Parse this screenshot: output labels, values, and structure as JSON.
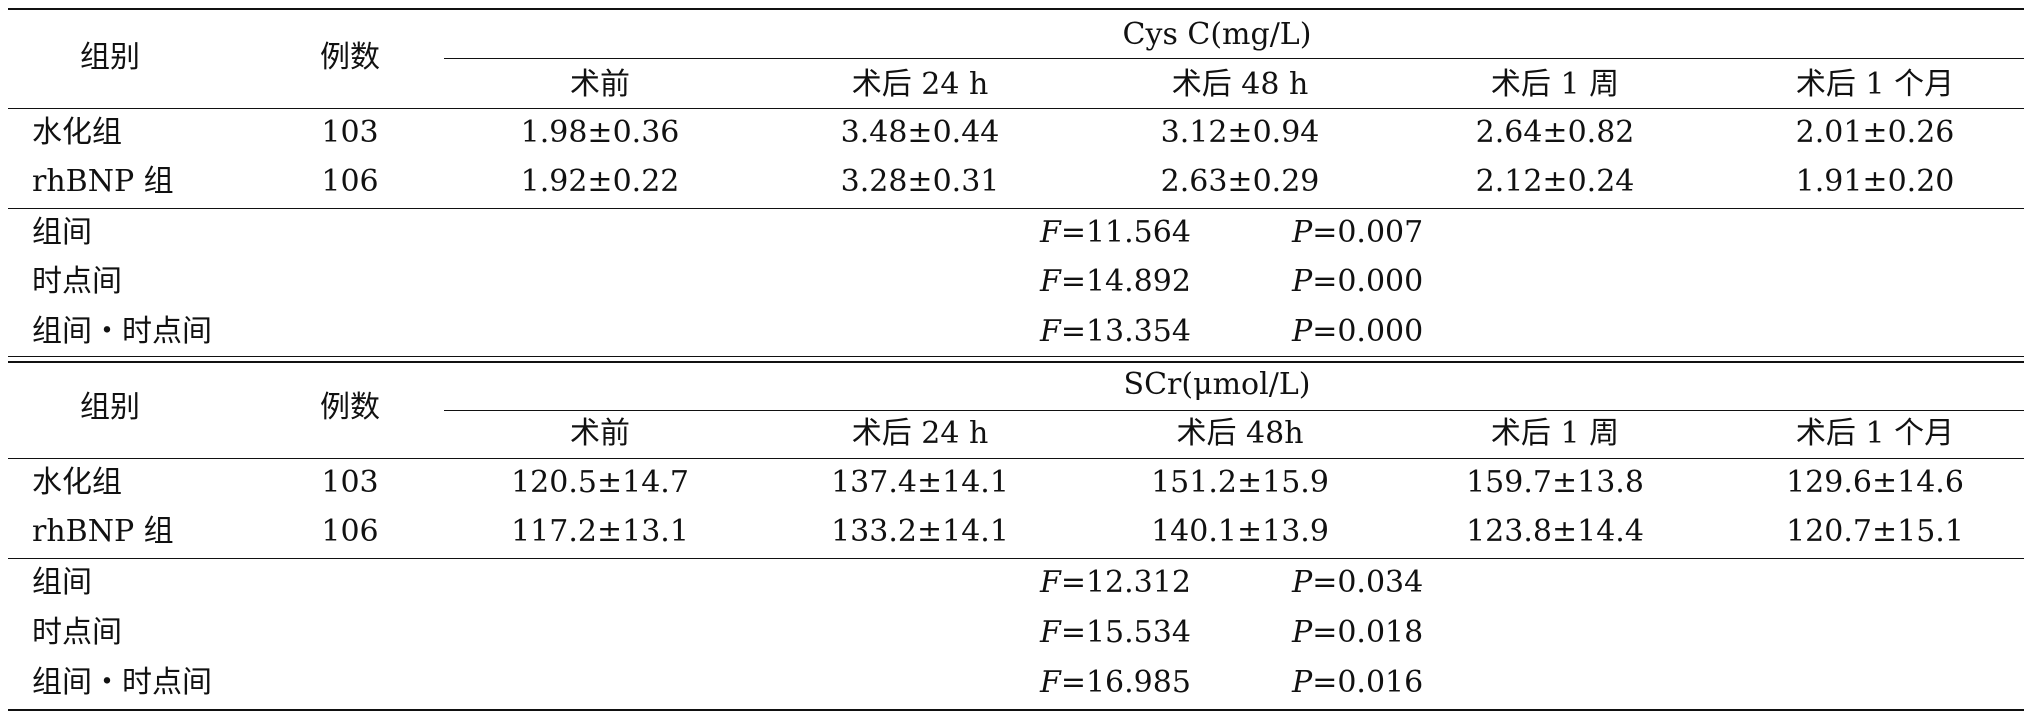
{
  "tables": [
    {
      "id": "cysc",
      "header": {
        "group_label": "组别",
        "count_label": "例数",
        "measure_title": "Cys C(mg/L)",
        "timepoints": [
          "术前",
          "术后 24 h",
          "术后 48 h",
          "术后 1 周",
          "术后 1 个月"
        ]
      },
      "rows": [
        {
          "group": "水化组",
          "n": "103",
          "values": [
            "1.98±0.36",
            "3.48±0.44",
            "3.12±0.94",
            "2.64±0.82",
            "2.01±0.26"
          ]
        },
        {
          "group": "rhBNP 组",
          "n": "106",
          "values": [
            "1.92±0.22",
            "3.28±0.31",
            "2.63±0.29",
            "2.12±0.24",
            "1.91±0.20"
          ]
        }
      ],
      "stats": [
        {
          "label": "组间",
          "F": "=11.564",
          "P": "=0.007"
        },
        {
          "label": "时点间",
          "F": "=14.892",
          "P": "=0.000"
        },
        {
          "label": "组间・时点间",
          "F": "=13.354",
          "P": "=0.000"
        }
      ]
    },
    {
      "id": "scr",
      "header": {
        "group_label": "组别",
        "count_label": "例数",
        "measure_title": "SCr(μmol/L)",
        "timepoints": [
          "术前",
          "术后 24 h",
          "术后 48h",
          "术后 1 周",
          "术后 1 个月"
        ]
      },
      "rows": [
        {
          "group": "水化组",
          "n": "103",
          "values": [
            "120.5±14.7",
            "137.4±14.1",
            "151.2±15.9",
            "159.7±13.8",
            "129.6±14.6"
          ]
        },
        {
          "group": "rhBNP 组",
          "n": "106",
          "values": [
            "117.2±13.1",
            "133.2±14.1",
            "140.1±13.9",
            "123.8±14.4",
            "120.7±15.1"
          ]
        }
      ],
      "stats": [
        {
          "label": "组间",
          "F": "=12.312",
          "P": "=0.034"
        },
        {
          "label": "时点间",
          "F": "=15.534",
          "P": "=0.018"
        },
        {
          "label": "组间・时点间",
          "F": "=16.985",
          "P": "=0.016"
        }
      ]
    }
  ],
  "stat_symbols": {
    "F": "F",
    "P": "P"
  }
}
